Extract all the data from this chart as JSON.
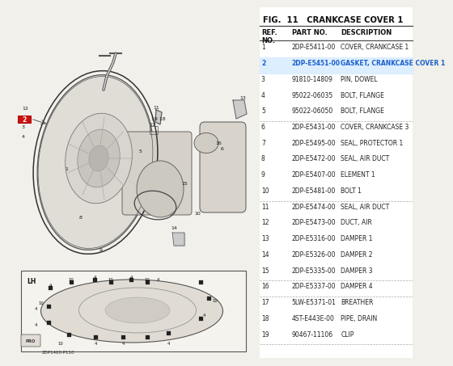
{
  "title": "FIG.  11   CRANKCASE COVER 1",
  "rows": [
    [
      "1",
      "2DP-E5411-00",
      "COVER, CRANKCASE 1"
    ],
    [
      "2",
      "2DP-E5451-00",
      "GASKET, CRANKCASE COVER 1"
    ],
    [
      "3",
      "91810-14809",
      "PIN, DOWEL"
    ],
    [
      "4",
      "95022-06035",
      "BOLT, FLANGE"
    ],
    [
      "5",
      "95022-06050",
      "BOLT, FLANGE"
    ],
    [
      "6",
      "2DP-E5431-00",
      "COVER, CRANKCASE 3"
    ],
    [
      "7",
      "2DP-E5495-00",
      "SEAL, PROTECTOR 1"
    ],
    [
      "8",
      "2DP-E5472-00",
      "SEAL, AIR DUCT"
    ],
    [
      "9",
      "2DP-E5407-00",
      "ELEMENT 1"
    ],
    [
      "10",
      "2DP-E5481-00",
      "BOLT 1"
    ],
    [
      "11",
      "2DP-E5474-00",
      "SEAL, AIR DUCT"
    ],
    [
      "12",
      "2DP-E5473-00",
      "DUCT, AIR"
    ],
    [
      "13",
      "2DP-E5316-00",
      "DAMPER 1"
    ],
    [
      "14",
      "2DP-E5326-00",
      "DAMPER 2"
    ],
    [
      "15",
      "2DP-E5335-00",
      "DAMPER 3"
    ],
    [
      "16",
      "2DP-E5337-00",
      "DAMPER 4"
    ],
    [
      "17",
      "5LW-E5371-01",
      "BREATHER"
    ],
    [
      "18",
      "4ST-E443E-00",
      "PIPE, DRAIN"
    ],
    [
      "19",
      "90467-11106",
      "CLIP"
    ]
  ],
  "highlight_row": 1,
  "highlight_color": "#1a5fcc",
  "separator_after_rows": [
    5,
    10,
    15,
    16
  ],
  "bg_color": "#f2f0ea",
  "table_bg": "#ffffff",
  "font_size_title": 7.2,
  "font_size_header": 6.0,
  "font_size_body": 5.5
}
